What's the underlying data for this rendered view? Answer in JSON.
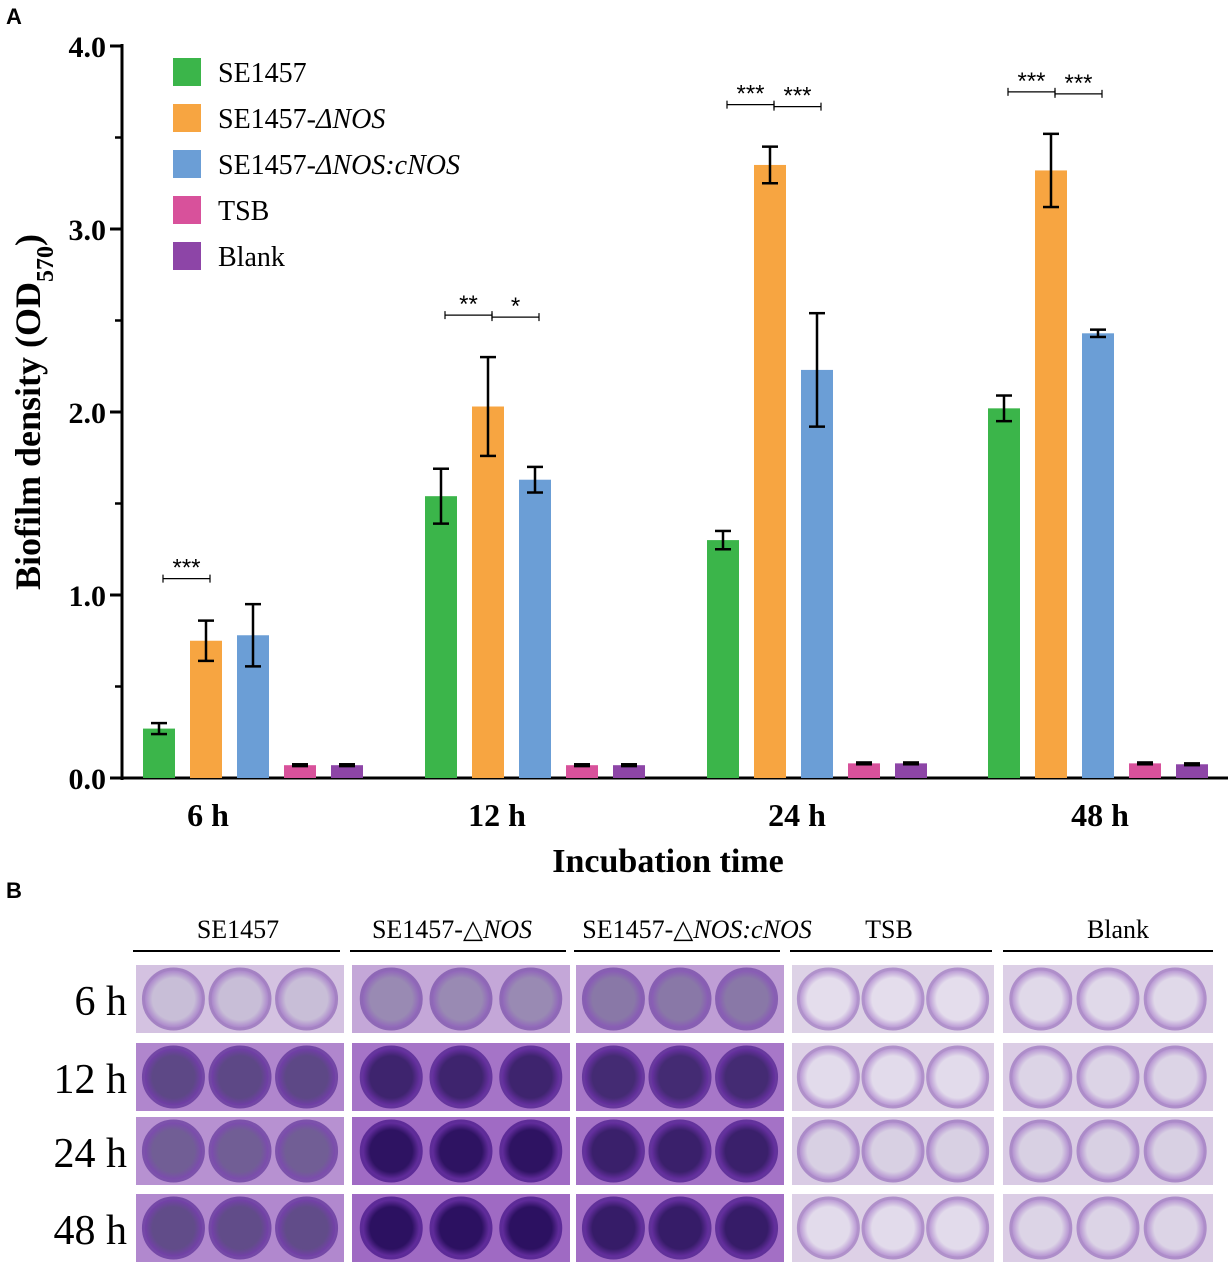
{
  "panels": {
    "a": "A",
    "b": "B"
  },
  "chart_data": {
    "type": "bar",
    "title": "",
    "xlabel": "Incubation time",
    "ylabel": "Biofilm density (OD570)",
    "ylabel_parts": {
      "main": "Biofilm density (OD",
      "sub": "570",
      "close": ")"
    },
    "ylim": [
      0,
      4
    ],
    "yticks": [
      "0.0",
      "1.0",
      "2.0",
      "3.0",
      "4.0"
    ],
    "categories": [
      "6 h",
      "12 h",
      "24 h",
      "48 h"
    ],
    "series": [
      {
        "name": "SE1457",
        "name_plain": "SE1457",
        "name_italic": "",
        "color": "#3bb54a",
        "values": [
          0.27,
          1.54,
          1.3,
          2.02
        ],
        "errors": [
          0.03,
          0.15,
          0.05,
          0.07
        ]
      },
      {
        "name": "SE1457-ΔNOS",
        "name_plain": "SE1457-",
        "name_italic": "ΔNOS",
        "color": "#f7a541",
        "values": [
          0.75,
          2.03,
          3.35,
          3.32
        ],
        "errors": [
          0.11,
          0.27,
          0.1,
          0.2
        ]
      },
      {
        "name": "SE1457-ΔNOS:cNOS",
        "name_plain": "SE1457-",
        "name_italic": "ΔNOS:cNOS",
        "color": "#6b9ed6",
        "values": [
          0.78,
          1.63,
          2.23,
          2.43
        ],
        "errors": [
          0.17,
          0.07,
          0.31,
          0.02
        ]
      },
      {
        "name": "TSB",
        "name_plain": "TSB",
        "name_italic": "",
        "color": "#d8519b",
        "values": [
          0.07,
          0.07,
          0.08,
          0.08
        ],
        "errors": [
          0.005,
          0.005,
          0.005,
          0.005
        ]
      },
      {
        "name": "Blank",
        "name_plain": "Blank",
        "name_italic": "",
        "color": "#8d45a7",
        "values": [
          0.07,
          0.07,
          0.08,
          0.075
        ],
        "errors": [
          0.005,
          0.005,
          0.005,
          0.005
        ]
      }
    ],
    "significance": [
      {
        "category": 0,
        "from": 0,
        "to": 1,
        "label": "***"
      },
      {
        "category": 1,
        "from": 0,
        "to": 1,
        "label": "**"
      },
      {
        "category": 1,
        "from": 1,
        "to": 2,
        "label": "*"
      },
      {
        "category": 2,
        "from": 0,
        "to": 1,
        "label": "***"
      },
      {
        "category": 2,
        "from": 1,
        "to": 2,
        "label": "***"
      },
      {
        "category": 3,
        "from": 0,
        "to": 1,
        "label": "***"
      },
      {
        "category": 3,
        "from": 1,
        "to": 2,
        "label": "***"
      }
    ]
  },
  "plate": {
    "columns": [
      {
        "plain": "SE1457",
        "italic": ""
      },
      {
        "plain": "SE1457-△",
        "italic": "NOS"
      },
      {
        "plain": "SE1457-△",
        "italic": "NOS:cNOS"
      },
      {
        "plain": "TSB",
        "italic": ""
      },
      {
        "plain": "Blank",
        "italic": ""
      }
    ],
    "rows": [
      "6 h",
      "12 h",
      "24 h",
      "48 h"
    ],
    "well_color": [
      [
        0.18,
        0.42,
        0.5,
        0.04,
        0.06
      ],
      [
        0.72,
        0.88,
        0.85,
        0.05,
        0.08
      ],
      [
        0.62,
        0.96,
        0.9,
        0.1,
        0.1
      ],
      [
        0.7,
        0.97,
        0.92,
        0.05,
        0.08
      ]
    ]
  }
}
